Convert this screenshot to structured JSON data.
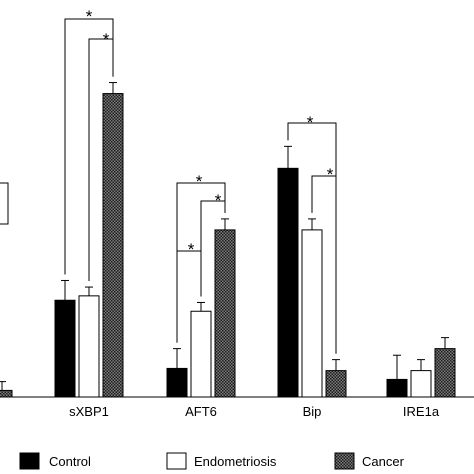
{
  "chart_data": {
    "type": "bar",
    "categories": [
      "sXBP1",
      "AFT6",
      "Bip",
      "IRE1a"
    ],
    "series": [
      {
        "name": "Control",
        "values": [
          22,
          6.5,
          52,
          4
        ],
        "errors": [
          4.5,
          4.5,
          5,
          5.5
        ],
        "color": "#000000",
        "pattern": "solid"
      },
      {
        "name": "Endometriosis",
        "values": [
          23,
          19.5,
          38,
          6
        ],
        "errors": [
          2,
          2,
          2.5,
          2.5
        ],
        "color": "#ffffff",
        "pattern": "open"
      },
      {
        "name": "Cancer",
        "values": [
          69,
          38,
          6,
          11
        ],
        "errors": [
          2.5,
          2.5,
          2.5,
          2.5
        ],
        "color": "#555555",
        "pattern": "checkered"
      }
    ],
    "partial_category": {
      "cancer_value": 1.5,
      "cancer_error": 2
    },
    "significance": [
      {
        "category": "sXBP1",
        "pair": [
          "Control",
          "Cancer"
        ],
        "label": "*"
      },
      {
        "category": "sXBP1",
        "pair": [
          "Endometriosis",
          "Cancer"
        ],
        "label": "*"
      },
      {
        "category": "AFT6",
        "pair": [
          "Control",
          "Cancer"
        ],
        "label": "*"
      },
      {
        "category": "AFT6",
        "pair": [
          "Endometriosis",
          "Cancer"
        ],
        "label": "*"
      },
      {
        "category": "AFT6",
        "pair": [
          "Control",
          "Endometriosis"
        ],
        "label": "*"
      },
      {
        "category": "Bip",
        "pair": [
          "Control",
          "Cancer"
        ],
        "label": "*"
      },
      {
        "category": "Bip",
        "pair": [
          "Endometriosis",
          "Cancer"
        ],
        "label": "*"
      }
    ],
    "ylim": [
      0,
      83
    ],
    "title": "",
    "xlabel": "",
    "ylabel": "",
    "grid": false,
    "legend": "bottom"
  }
}
